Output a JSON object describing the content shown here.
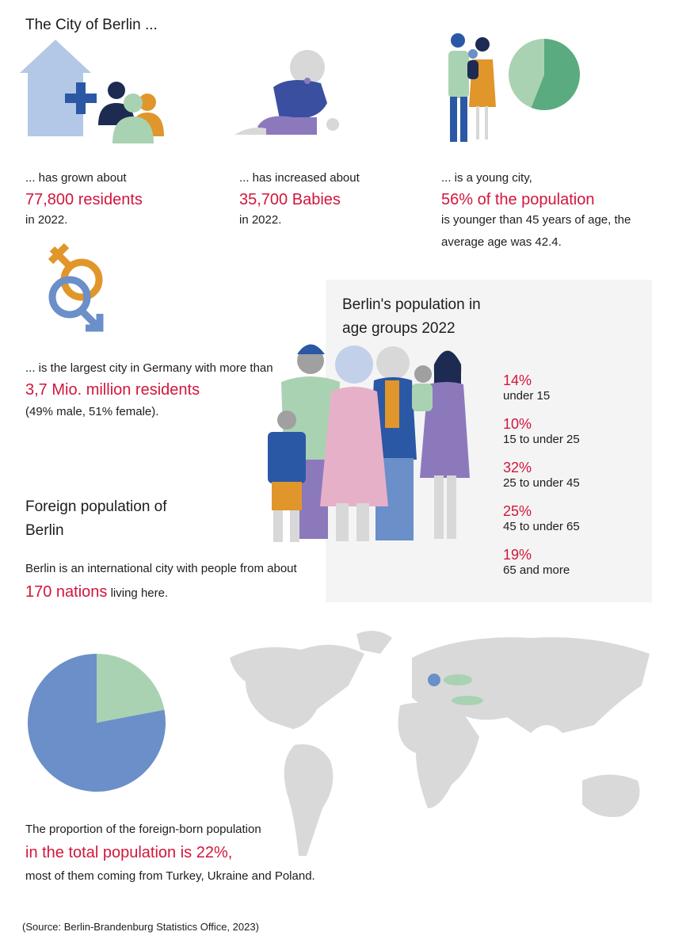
{
  "header": {
    "title": "The City of Berlin ..."
  },
  "facts": [
    {
      "intro": "... has grown about",
      "highlight": "77,800 residents",
      "outro": "in 2022."
    },
    {
      "intro": "... has increased about",
      "highlight": "35,700 Babies",
      "outro": "in 2022."
    },
    {
      "intro": "... is a young city,",
      "highlight": "56% of the population",
      "outro": "is younger than 45 years of age, the average age was 42.4."
    },
    {
      "intro": "... is the largest city in Germany with more than",
      "highlight": "3,7 Mio. million residents",
      "outro": "(49% male, 51% female)."
    }
  ],
  "age_groups": {
    "title": "Berlin's population in age groups 2022",
    "items": [
      {
        "share": "14%",
        "label": "under 15"
      },
      {
        "share": "10%",
        "label": "15 to under 25"
      },
      {
        "share": "32%",
        "label": "25 to under 45"
      },
      {
        "share": "25%",
        "label": "45 to under 65"
      },
      {
        "share": "19%",
        "label": "65 and more"
      }
    ]
  },
  "foreign": {
    "title": "Foreign population of Berlin",
    "intro": "Berlin is an international city with people from about",
    "highlight": "170 nations",
    "outro": "living here.",
    "proportion_intro": "The proportion of the foreign-born population",
    "proportion_highlight": "in the total population is 22%,",
    "proportion_outro": "most of them coming from Turkey, Ukraine and Poland."
  },
  "pies": [
    {
      "values": [
        56,
        44
      ],
      "colors": [
        "#5aab80",
        "#a9d2b3"
      ]
    },
    {
      "values": [
        22,
        78
      ],
      "colors": [
        "#a9d2b3",
        "#6a8fc9"
      ]
    }
  ],
  "source": "(Source: Berlin-Brandenburg Statistics Office, 2023)"
}
